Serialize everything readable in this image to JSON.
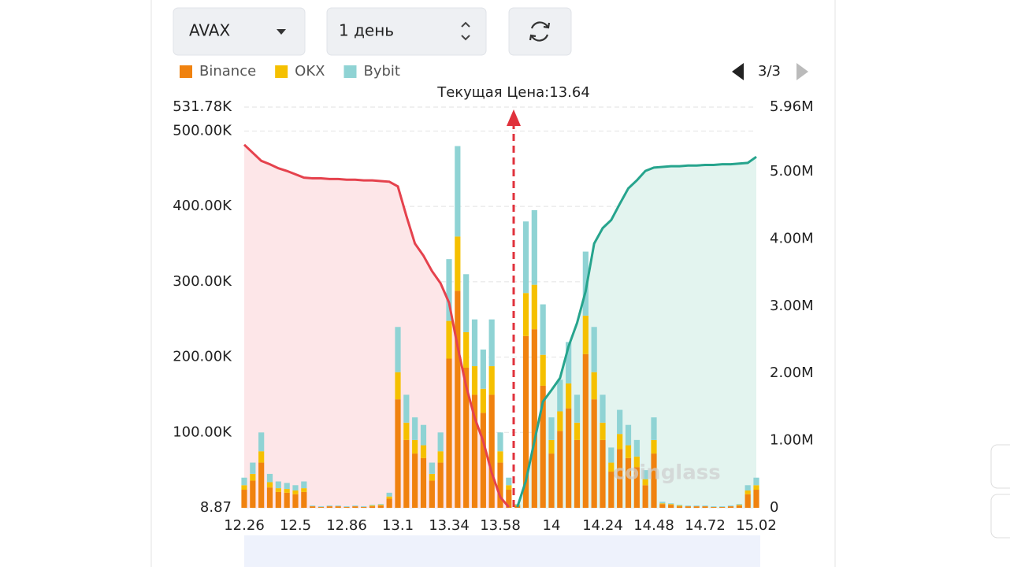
{
  "controls": {
    "symbol": "AVAX",
    "interval": "1 день",
    "page": "3/3"
  },
  "chart_data": {
    "type": "liquidation-map",
    "annotation": "Текущая Цена:13.64",
    "watermark": "coinglass",
    "categories": [
      "12.26",
      null,
      null,
      null,
      null,
      null,
      "12.5",
      null,
      null,
      null,
      null,
      null,
      "12.86",
      null,
      null,
      null,
      null,
      null,
      "13.1",
      null,
      null,
      null,
      null,
      null,
      "13.34",
      null,
      null,
      null,
      null,
      null,
      "13.58",
      null,
      null,
      null,
      null,
      null,
      "14",
      null,
      null,
      null,
      null,
      null,
      "14.24",
      null,
      null,
      null,
      null,
      null,
      "14.48",
      null,
      null,
      null,
      null,
      null,
      "14.72",
      null,
      null,
      null,
      null,
      null,
      "15.02"
    ],
    "series": [
      {
        "name": "Binance",
        "color": "#f0820f",
        "values": [
          24000,
          36000,
          60000,
          27000,
          21000,
          20000,
          18000,
          21000,
          2000,
          1000,
          2000,
          2000,
          1000,
          2000,
          1000,
          2000,
          3000,
          12000,
          144000,
          90000,
          72000,
          66000,
          36000,
          60000,
          198000,
          288000,
          186000,
          150000,
          126000,
          150000,
          60000,
          24000,
          3000,
          228000,
          237000,
          162000,
          72000,
          102000,
          132000,
          90000,
          204000,
          144000,
          90000,
          48000,
          78000,
          66000,
          54000,
          30000,
          72000,
          5000,
          4000,
          2000,
          2000,
          2000,
          2000,
          1000,
          1000,
          2000,
          3000,
          18000,
          24000
        ]
      },
      {
        "name": "OKX",
        "color": "#f5c000",
        "values": [
          6000,
          9000,
          15000,
          7000,
          5000,
          5000,
          5000,
          5000,
          0,
          0,
          0,
          0,
          0,
          0,
          0,
          1000,
          1000,
          3000,
          36000,
          23000,
          18000,
          17000,
          9000,
          15000,
          50000,
          72000,
          47000,
          38000,
          32000,
          38000,
          15000,
          6000,
          1000,
          57000,
          59000,
          41000,
          18000,
          26000,
          33000,
          23000,
          51000,
          36000,
          23000,
          12000,
          20000,
          17000,
          14000,
          8000,
          18000,
          1000,
          1000,
          1000,
          0,
          0,
          0,
          0,
          0,
          0,
          1000,
          5000,
          6000
        ]
      },
      {
        "name": "Bybit",
        "color": "#8fd3d4",
        "values": [
          10000,
          15000,
          25000,
          11000,
          9000,
          8000,
          7000,
          9000,
          1000,
          1000,
          1000,
          1000,
          1000,
          1000,
          1000,
          1000,
          1000,
          5000,
          60000,
          37000,
          30000,
          27000,
          15000,
          25000,
          82000,
          120000,
          77000,
          62000,
          52000,
          62000,
          25000,
          10000,
          1000,
          95000,
          99000,
          67000,
          30000,
          42000,
          55000,
          37000,
          85000,
          60000,
          37000,
          20000,
          32000,
          27000,
          22000,
          12000,
          30000,
          2000,
          1000,
          1000,
          1000,
          1000,
          1000,
          1000,
          1000,
          1000,
          1000,
          7000,
          10000
        ]
      }
    ],
    "lines": [
      {
        "color": "#e5424d",
        "fill": "#fde6e8",
        "axis": "y2",
        "values": [
          5400000,
          5280000,
          5160000,
          5110000,
          5050000,
          5010000,
          4960000,
          4910000,
          4900000,
          4900000,
          4890000,
          4890000,
          4880000,
          4880000,
          4870000,
          4870000,
          4860000,
          4850000,
          4780000,
          4340000,
          3930000,
          3750000,
          3520000,
          3340000,
          3050000,
          2400000,
          1810000,
          1340000,
          990000,
          520000,
          160000,
          10000,
          null,
          null,
          null,
          null,
          null,
          null,
          null,
          null,
          null,
          null,
          null,
          null,
          null,
          null,
          null,
          null,
          null,
          null,
          null,
          null,
          null,
          null,
          null,
          null,
          null,
          null,
          null,
          null,
          null
        ]
      },
      {
        "color": "#26a48d",
        "fill": "#e3f4ef",
        "axis": "y2",
        "values": [
          null,
          null,
          null,
          null,
          null,
          null,
          null,
          null,
          null,
          null,
          null,
          null,
          null,
          null,
          null,
          null,
          null,
          null,
          null,
          null,
          null,
          null,
          null,
          null,
          null,
          null,
          null,
          null,
          null,
          null,
          null,
          null,
          10000,
          400000,
          990000,
          1580000,
          1750000,
          1930000,
          2400000,
          2750000,
          3220000,
          3930000,
          4160000,
          4280000,
          4520000,
          4750000,
          4870000,
          5010000,
          5060000,
          5070000,
          5080000,
          5080000,
          5090000,
          5090000,
          5100000,
          5100000,
          5110000,
          5110000,
          5120000,
          5130000,
          5220000
        ]
      }
    ],
    "ylim": [
      8.87,
      531780
    ],
    "yticks": [
      8.87,
      {
        "value": 100000,
        "label": "100.00K"
      },
      {
        "value": 200000,
        "label": "200.00K"
      },
      {
        "value": 300000,
        "label": "300.00K"
      },
      {
        "value": 400000,
        "label": "400.00K"
      },
      {
        "value": 500000,
        "label": "500.00K"
      },
      {
        "value": 531780,
        "label": "531.78K"
      }
    ],
    "y2lim": [
      0,
      5960000
    ],
    "y2ticks": [
      0,
      {
        "value": 1000000,
        "label": "1.00M"
      },
      {
        "value": 2000000,
        "label": "2.00M"
      },
      {
        "value": 3000000,
        "label": "3.00M"
      },
      {
        "value": 4000000,
        "label": "4.00M"
      },
      {
        "value": 5000000,
        "label": "5.00M"
      },
      {
        "value": 5960000,
        "label": "5.96M"
      }
    ],
    "grid": true
  }
}
